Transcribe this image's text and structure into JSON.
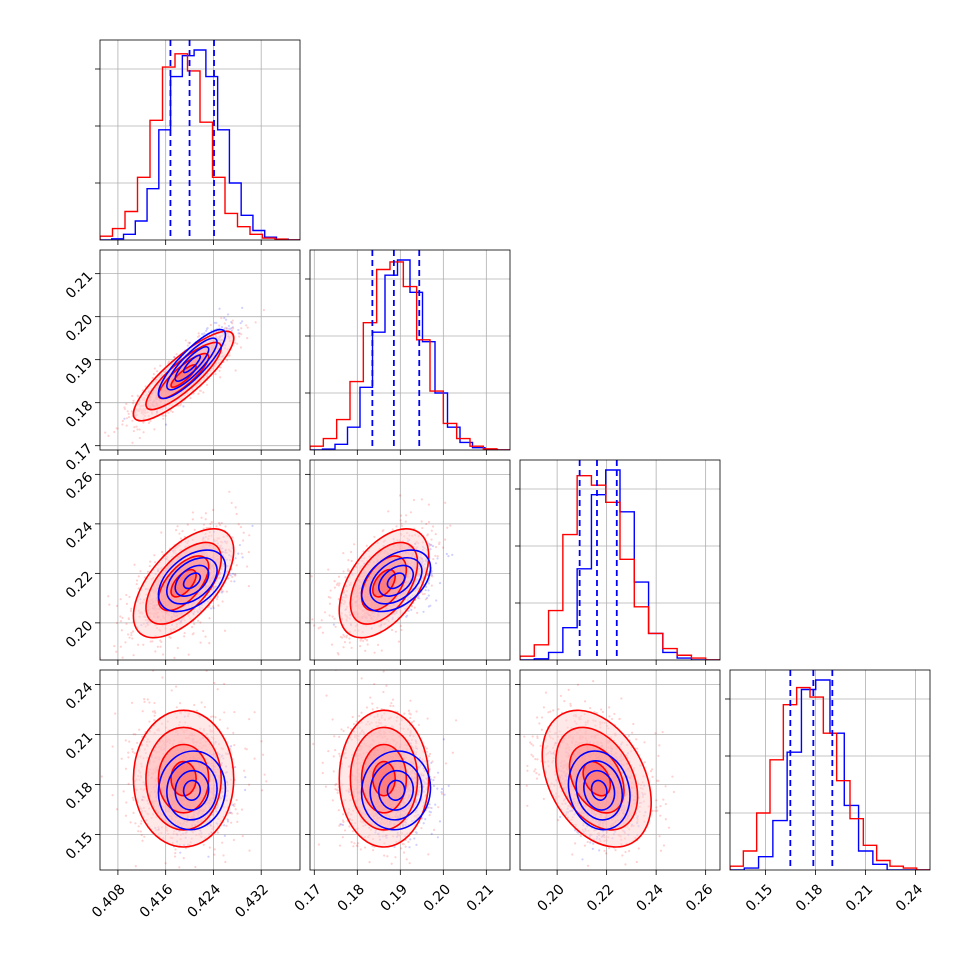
{
  "colors": {
    "blue": "#0000ff",
    "red": "#ff0000",
    "grid": "#b0b0b0",
    "red_fill": "#ff9a9a",
    "red_fill_dark": "#ff6060"
  },
  "chart_data": {
    "type": "corner",
    "grid": true,
    "parameters": [
      {
        "range": [
          0.405,
          0.4385
        ],
        "ticks": [
          0.408,
          0.416,
          0.424,
          0.432
        ],
        "tick_labels": [
          "0.408",
          "0.416",
          "0.424",
          "0.432"
        ],
        "quantiles_blue": [
          0.4168,
          0.42,
          0.4241
        ]
      },
      {
        "range": [
          0.169,
          0.2155
        ],
        "ticks": [
          0.17,
          0.18,
          0.19,
          0.2,
          0.21
        ],
        "tick_labels": [
          "0.17",
          "0.18",
          "0.19",
          "0.20",
          "0.21"
        ],
        "quantiles_blue": [
          0.1835,
          0.1885,
          0.1944
        ]
      },
      {
        "range": [
          0.185,
          0.2658
        ],
        "ticks": [
          0.2,
          0.22,
          0.24,
          0.26
        ],
        "tick_labels": [
          "0.20",
          "0.22",
          "0.24",
          "0.26"
        ],
        "quantiles_blue": [
          0.2091,
          0.2161,
          0.2241
        ]
      },
      {
        "range": [
          0.1287,
          0.2487
        ],
        "ticks": [
          0.15,
          0.18,
          0.21,
          0.24
        ],
        "tick_labels": [
          "0.15",
          "0.18",
          "0.21",
          "0.24"
        ],
        "quantiles_blue": [
          0.1649,
          0.1787,
          0.1901
        ]
      }
    ],
    "series": [
      {
        "color": "#0000ff",
        "means": [
          0.4204,
          0.189,
          0.217,
          0.1765
        ],
        "sds": [
          0.0028,
          0.004,
          0.0062,
          0.0118
        ],
        "correlations": {
          "0-1": 0.85,
          "0-2": 0.45,
          "1-2": 0.42,
          "0-3": 0.05,
          "1-3": 0.05,
          "2-3": -0.15
        },
        "histograms": [
          [
            0.0,
            0.006,
            0.03,
            0.1,
            0.27,
            0.58,
            0.86,
            0.97,
            1.0,
            0.86,
            0.58,
            0.3,
            0.13,
            0.05,
            0.015,
            0.004,
            0.0
          ],
          [
            0.0,
            0.005,
            0.03,
            0.12,
            0.33,
            0.62,
            0.92,
            1.0,
            0.83,
            0.57,
            0.3,
            0.12,
            0.04,
            0.012,
            0.003,
            0.0
          ],
          [
            0.0,
            0.006,
            0.04,
            0.17,
            0.48,
            0.87,
            1.0,
            0.78,
            0.41,
            0.14,
            0.04,
            0.01,
            0.0,
            0.0
          ],
          [
            0.0,
            0.01,
            0.07,
            0.26,
            0.62,
            0.95,
            1.0,
            0.72,
            0.34,
            0.1,
            0.03,
            0.0,
            0.0,
            0.0
          ]
        ]
      },
      {
        "color": "#ff0000",
        "means": [
          0.419,
          0.1862,
          0.216,
          0.1835
        ],
        "sds": [
          0.0042,
          0.0052,
          0.011,
          0.0205
        ],
        "correlations": {
          "0-1": 0.85,
          "0-2": 0.6,
          "1-2": 0.5,
          "0-3": 0.0,
          "1-3": 0.0,
          "2-3": -0.35
        },
        "histograms": [
          [
            0.02,
            0.06,
            0.15,
            0.33,
            0.63,
            0.91,
            0.98,
            0.89,
            0.62,
            0.33,
            0.14,
            0.07,
            0.03,
            0.01,
            0.005,
            0.0
          ],
          [
            0.02,
            0.06,
            0.16,
            0.36,
            0.67,
            0.95,
            0.99,
            0.86,
            0.58,
            0.31,
            0.14,
            0.06,
            0.02,
            0.006,
            0.0
          ],
          [
            0.02,
            0.08,
            0.26,
            0.66,
            0.97,
            0.92,
            0.83,
            0.53,
            0.28,
            0.14,
            0.06,
            0.025,
            0.01,
            0.0
          ],
          [
            0.02,
            0.1,
            0.3,
            0.58,
            0.87,
            0.96,
            0.91,
            0.72,
            0.47,
            0.27,
            0.13,
            0.05,
            0.02,
            0.01,
            0.0
          ]
        ]
      }
    ]
  }
}
